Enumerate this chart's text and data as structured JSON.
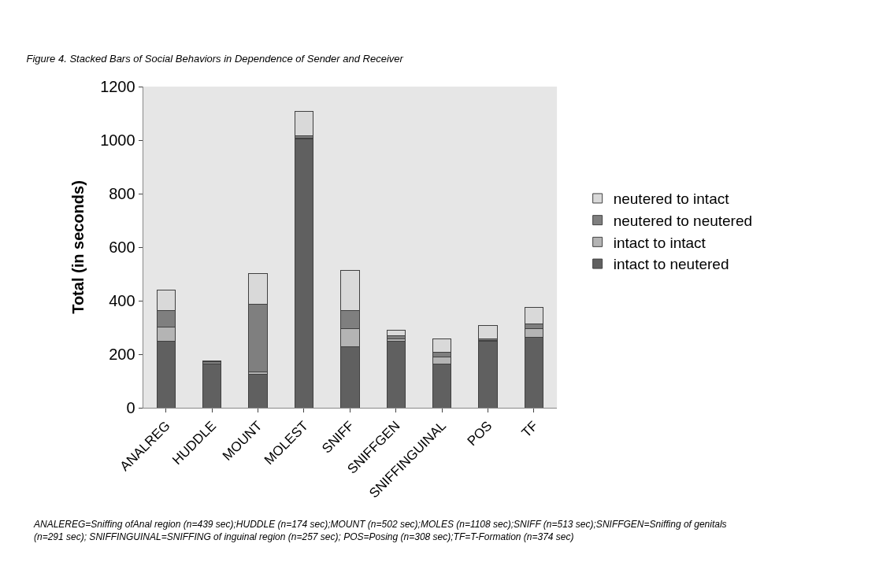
{
  "chart_data": {
    "type": "bar",
    "stacked": true,
    "title": "Figure 4. Stacked Bars of Social Behaviors in Dependence of Sender and Receiver",
    "ylabel": "Total (in seconds)",
    "categories": [
      "ANALREG",
      "HUDDLE",
      "MOUNT",
      "MOLEST",
      "SNIFF",
      "SNIFFGEN",
      "SNIFFINGUINAL",
      "POS",
      "TF"
    ],
    "series": [
      {
        "name": "intact to neutered",
        "color": "#606060",
        "values": [
          248,
          162,
          125,
          1003,
          228,
          249,
          162,
          249,
          262
        ]
      },
      {
        "name": "intact to intact",
        "color": "#b4b4b4",
        "values": [
          53,
          2,
          8,
          4,
          68,
          7,
          27,
          3,
          35
        ]
      },
      {
        "name": "neutered to neutered",
        "color": "#7f7f7f",
        "values": [
          61,
          8,
          255,
          8,
          68,
          12,
          17,
          6,
          17
        ]
      },
      {
        "name": "neutered to intact",
        "color": "#d9d9d9",
        "values": [
          77,
          2,
          114,
          93,
          149,
          23,
          51,
          50,
          60
        ]
      }
    ],
    "ylim": [
      0,
      1200
    ],
    "yticks": [
      0,
      200,
      400,
      600,
      800,
      1000,
      1200
    ],
    "grid": false,
    "legend": "right",
    "annotations": [
      "ANALEREG=Sniffing ofAnal region (n=439 sec);HUDDLE (n=174 sec);MOUNT (n=502 sec);MOLES (n=1108 sec);SNIFF (n=513 sec);SNIFFGEN=Sniffing of genitals (n=291 sec); SNIFFINGUINAL=SNIFFING of inguinal region (n=257 sec); POS=Posing (n=308 sec);TF=T-Formation (n=374 sec)"
    ]
  }
}
